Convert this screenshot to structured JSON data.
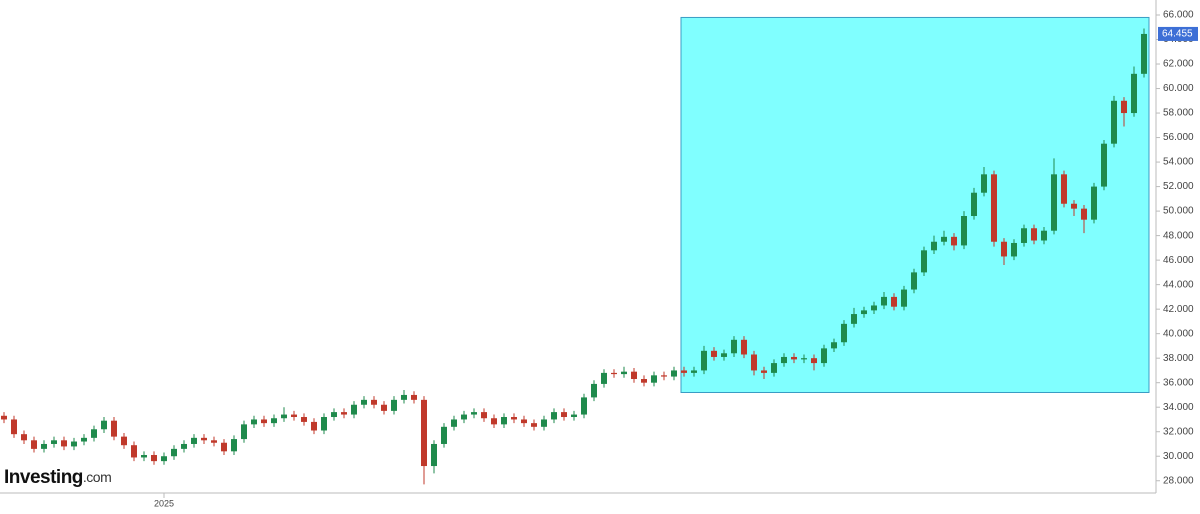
{
  "chart_data": {
    "type": "candlestick",
    "categories": [
      null,
      null,
      null,
      null,
      null,
      null,
      null,
      null,
      null,
      null,
      null,
      null,
      null,
      null,
      null,
      null,
      "2025",
      null,
      null,
      null,
      null,
      null,
      null,
      null,
      null,
      null,
      null,
      null,
      null,
      null,
      null,
      null,
      null,
      null,
      null,
      null,
      null,
      null,
      null,
      null,
      null,
      null,
      null,
      null,
      null,
      null,
      null,
      null,
      null,
      null,
      null,
      null,
      null,
      null,
      null,
      null,
      null,
      null,
      null,
      null,
      null,
      null,
      null,
      null,
      null,
      null,
      null,
      null,
      null,
      null,
      null,
      null,
      null,
      null,
      null,
      null,
      null,
      null,
      null,
      null,
      null,
      null,
      null,
      null,
      null,
      null,
      null,
      null,
      null,
      null,
      null,
      null,
      null,
      null,
      null,
      null,
      null,
      null,
      null,
      null,
      null,
      null,
      null,
      null,
      null,
      null,
      null,
      null,
      null,
      null,
      null,
      null,
      null,
      null,
      null
    ],
    "open": [
      33.3,
      33.0,
      31.8,
      31.3,
      30.6,
      31.0,
      31.3,
      30.8,
      31.2,
      31.5,
      32.2,
      32.9,
      31.6,
      30.9,
      29.9,
      30.1,
      29.6,
      30.0,
      30.6,
      31.0,
      31.5,
      31.3,
      31.1,
      30.4,
      31.4,
      32.6,
      33.0,
      32.7,
      33.1,
      33.4,
      33.2,
      32.8,
      32.1,
      33.2,
      33.6,
      33.4,
      34.2,
      34.6,
      34.2,
      33.7,
      34.6,
      35.0,
      34.6,
      29.2,
      31.0,
      32.4,
      33.0,
      33.4,
      33.6,
      33.1,
      32.6,
      33.2,
      33.0,
      32.7,
      32.4,
      33.0,
      33.6,
      33.2,
      33.4,
      34.8,
      35.9,
      36.8,
      36.7,
      36.9,
      36.3,
      36.0,
      36.6,
      36.5,
      37.0,
      36.8,
      37.0,
      38.6,
      38.1,
      38.4,
      39.5,
      38.3,
      37.0,
      36.8,
      37.6,
      38.1,
      37.9,
      38.0,
      37.6,
      38.8,
      39.3,
      40.8,
      41.6,
      41.9,
      42.3,
      43.0,
      42.2,
      43.6,
      45.0,
      46.8,
      47.5,
      47.9,
      47.2,
      49.6,
      51.5,
      53.0,
      47.5,
      46.3,
      47.4,
      48.6,
      47.6,
      48.4,
      53.0,
      50.6,
      50.2,
      49.3,
      52.0,
      55.5,
      59.0,
      58.0,
      61.2
    ],
    "high": [
      33.6,
      33.3,
      32.1,
      31.6,
      31.3,
      31.6,
      31.6,
      31.5,
      31.8,
      32.5,
      33.2,
      33.2,
      31.9,
      31.2,
      30.4,
      30.4,
      30.3,
      30.9,
      31.3,
      31.8,
      31.8,
      31.6,
      31.4,
      31.7,
      32.9,
      33.3,
      33.3,
      33.4,
      34.0,
      33.7,
      33.5,
      33.1,
      33.5,
      33.9,
      33.9,
      34.5,
      34.9,
      34.9,
      34.5,
      34.9,
      35.4,
      35.3,
      34.9,
      31.3,
      32.7,
      33.3,
      33.7,
      33.9,
      33.9,
      33.4,
      33.5,
      33.5,
      33.3,
      33.0,
      33.3,
      33.9,
      33.9,
      33.7,
      35.1,
      36.2,
      37.1,
      37.1,
      37.3,
      37.2,
      36.6,
      36.9,
      36.9,
      37.3,
      37.3,
      37.3,
      39.0,
      38.9,
      38.7,
      39.8,
      39.8,
      38.6,
      37.3,
      37.9,
      38.4,
      38.4,
      38.3,
      38.3,
      39.1,
      39.6,
      41.1,
      42.1,
      42.2,
      42.6,
      43.4,
      43.3,
      43.9,
      45.3,
      47.1,
      48.0,
      48.4,
      48.2,
      50.0,
      51.9,
      53.6,
      53.3,
      47.8,
      47.7,
      48.9,
      48.9,
      48.7,
      54.3,
      53.3,
      50.9,
      50.5,
      52.3,
      55.8,
      59.4,
      59.3,
      61.8,
      64.9
    ],
    "low": [
      32.7,
      31.5,
      31.0,
      30.3,
      30.3,
      30.7,
      30.5,
      30.5,
      30.9,
      31.2,
      31.9,
      31.3,
      30.6,
      29.6,
      29.6,
      29.3,
      29.3,
      29.7,
      30.3,
      30.7,
      31.0,
      30.8,
      30.1,
      30.1,
      31.1,
      32.3,
      32.4,
      32.4,
      32.8,
      32.9,
      32.5,
      31.8,
      31.8,
      32.9,
      33.1,
      33.1,
      33.9,
      33.9,
      33.4,
      33.4,
      34.3,
      34.3,
      27.7,
      28.6,
      30.7,
      32.1,
      32.7,
      33.1,
      32.8,
      32.3,
      32.3,
      32.7,
      32.4,
      32.1,
      32.1,
      32.7,
      32.9,
      32.9,
      33.1,
      34.5,
      35.6,
      36.4,
      36.4,
      36.0,
      35.7,
      35.7,
      36.2,
      36.2,
      36.5,
      36.5,
      36.7,
      37.8,
      37.8,
      38.1,
      38.0,
      36.6,
      36.3,
      36.5,
      37.3,
      37.6,
      37.6,
      37.0,
      37.3,
      38.5,
      39.0,
      40.5,
      41.3,
      41.6,
      42.0,
      41.9,
      41.9,
      43.3,
      44.7,
      46.5,
      47.2,
      46.8,
      46.9,
      49.3,
      51.2,
      47.1,
      45.6,
      46.0,
      47.1,
      47.3,
      47.3,
      48.1,
      50.3,
      49.6,
      48.2,
      49.0,
      51.7,
      55.2,
      56.9,
      57.7,
      60.9
    ],
    "close": [
      33.0,
      31.8,
      31.3,
      30.6,
      31.0,
      31.3,
      30.8,
      31.2,
      31.5,
      32.2,
      32.9,
      31.6,
      30.9,
      29.9,
      30.1,
      29.6,
      30.0,
      30.6,
      31.0,
      31.5,
      31.3,
      31.1,
      30.4,
      31.4,
      32.6,
      33.0,
      32.7,
      33.1,
      33.4,
      33.2,
      32.8,
      32.1,
      33.2,
      33.6,
      33.4,
      34.2,
      34.6,
      34.2,
      33.7,
      34.6,
      35.0,
      34.6,
      29.2,
      31.0,
      32.4,
      33.0,
      33.4,
      33.6,
      33.1,
      32.6,
      33.2,
      33.0,
      32.7,
      32.4,
      33.0,
      33.6,
      33.2,
      33.4,
      34.8,
      35.9,
      36.8,
      36.7,
      36.9,
      36.3,
      36.0,
      36.6,
      36.5,
      37.0,
      36.8,
      37.0,
      38.6,
      38.1,
      38.4,
      39.5,
      38.3,
      37.0,
      36.8,
      37.6,
      38.1,
      37.9,
      38.0,
      37.6,
      38.8,
      39.3,
      40.8,
      41.6,
      41.9,
      42.3,
      43.0,
      42.2,
      43.6,
      45.0,
      46.8,
      47.5,
      47.9,
      47.2,
      49.6,
      51.5,
      53.0,
      47.5,
      46.3,
      47.4,
      48.6,
      47.6,
      48.4,
      53.0,
      50.6,
      50.2,
      49.3,
      52.0,
      55.5,
      59.0,
      58.0,
      61.2,
      64.455
    ],
    "up_color": "#1f8a4c",
    "down_color": "#c0392b",
    "ylim": [
      27,
      66.25
    ],
    "yticks": [
      {
        "value": 28,
        "label": "28.000"
      },
      {
        "value": 30,
        "label": "30.000"
      },
      {
        "value": 32,
        "label": "32.000"
      },
      {
        "value": 34,
        "label": "34.000"
      },
      {
        "value": 36,
        "label": "36.000"
      },
      {
        "value": 38,
        "label": "38.000"
      },
      {
        "value": 40,
        "label": "40.000"
      },
      {
        "value": 42,
        "label": "42.000"
      },
      {
        "value": 44,
        "label": "44.000"
      },
      {
        "value": 46,
        "label": "46.000"
      },
      {
        "value": 48,
        "label": "48.000"
      },
      {
        "value": 50,
        "label": "50.000"
      },
      {
        "value": 52,
        "label": "52.000"
      },
      {
        "value": 54,
        "label": "54.000"
      },
      {
        "value": 56,
        "label": "56.000"
      },
      {
        "value": 58,
        "label": "58.000"
      },
      {
        "value": 60,
        "label": "60.000"
      },
      {
        "value": 62,
        "label": "62.000"
      },
      {
        "value": 64,
        "label": "64.000"
      },
      {
        "value": 66,
        "label": "66.000"
      }
    ],
    "last_price": {
      "value": 64.455,
      "label": "64.455"
    },
    "highlight": {
      "x": [
        67.7,
        114.5
      ],
      "y": [
        35.2,
        65.8
      ],
      "color": "#80ffff"
    },
    "watermark": {
      "brand": "Investing",
      "suffix": ".com"
    }
  }
}
